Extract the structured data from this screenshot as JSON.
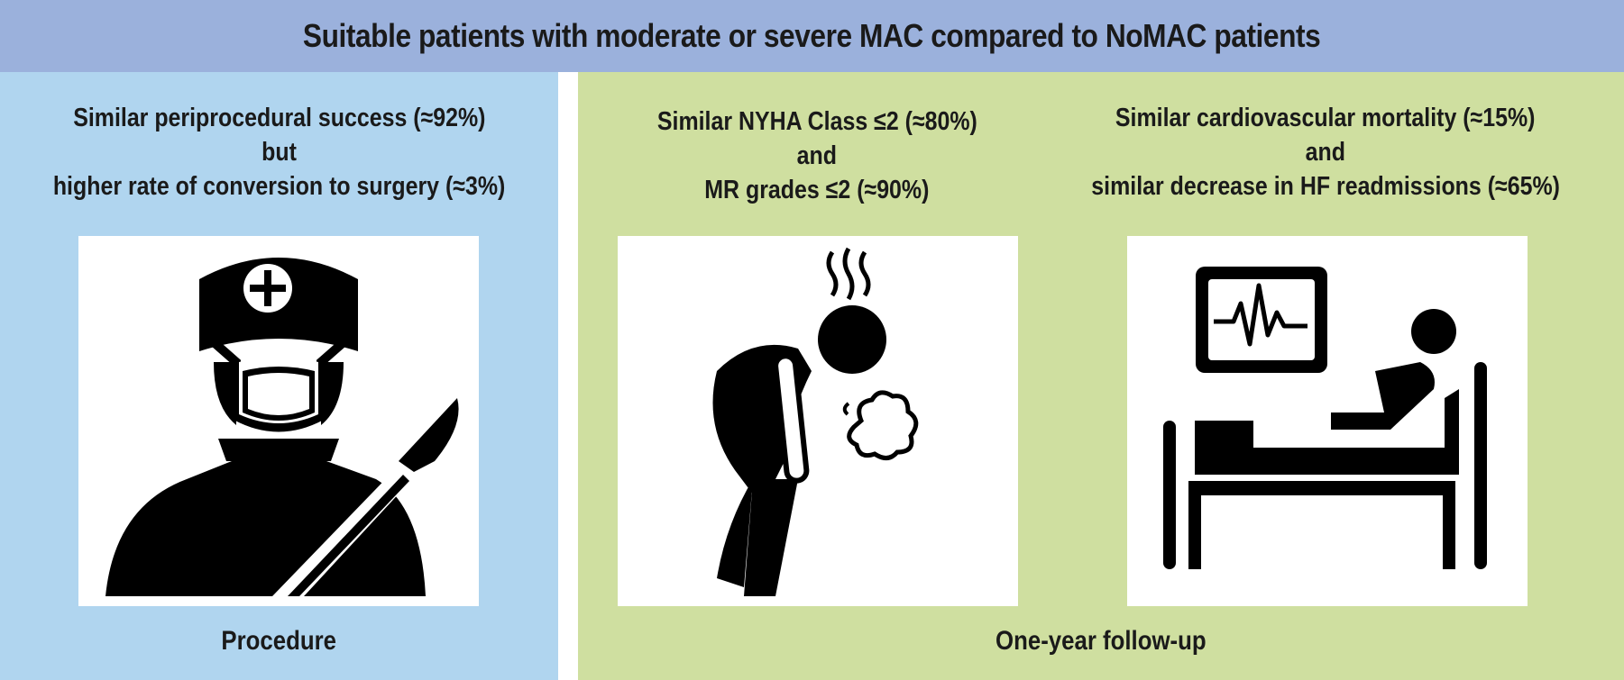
{
  "header": {
    "title": "Suitable patients with moderate or severe MAC compared to NoMAC patients"
  },
  "panels": {
    "procedure": {
      "caption_lines": [
        "Similar periprocedural success (≈92%)",
        "but",
        "higher rate of conversion to surgery (≈3%)"
      ],
      "footer": "Procedure",
      "icon": "surgeon-with-scalpel-icon"
    },
    "nyha": {
      "caption_lines": [
        "Similar NYHA Class ≤2 (≈80%)",
        "and",
        "MR grades ≤2 (≈90%)"
      ],
      "icon": "breathless-person-icon"
    },
    "mortality": {
      "caption_lines": [
        "Similar cardiovascular mortality (≈15%)",
        "and",
        "similar decrease in HF readmissions (≈65%)"
      ],
      "icon": "hospital-bed-monitor-icon"
    },
    "followup": {
      "footer": "One-year follow-up"
    }
  },
  "colors": {
    "header_bg": "#9bb1dc",
    "left_panel_bg": "#b0d5ef",
    "right_panel_bg": "#cfdfa0",
    "icon_fill": "#000000"
  }
}
